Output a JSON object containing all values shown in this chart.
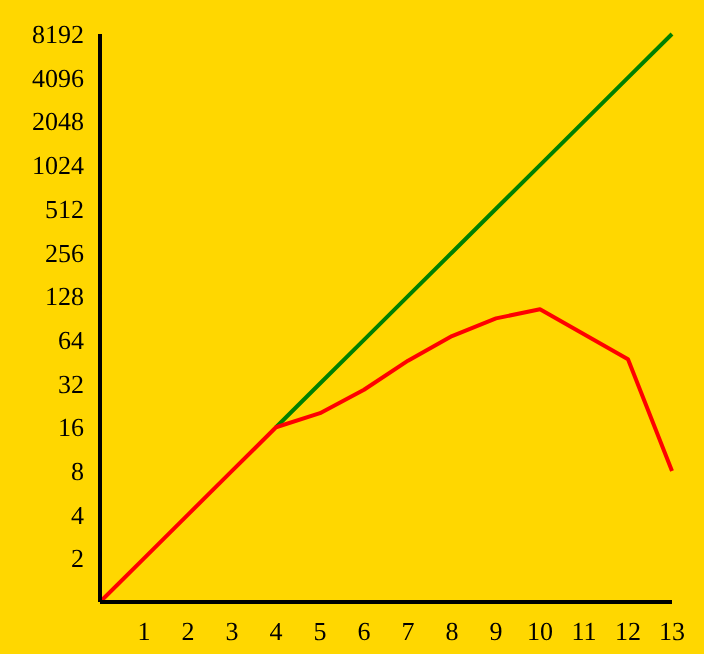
{
  "chart_data": {
    "type": "line",
    "log": "y",
    "x": [
      0,
      1,
      2,
      3,
      4,
      5,
      6,
      7,
      8,
      9,
      10,
      11,
      12,
      13
    ],
    "xlim": [
      0,
      13
    ],
    "xticks": [
      1,
      2,
      3,
      4,
      5,
      6,
      7,
      8,
      9,
      10,
      11,
      12,
      13
    ],
    "ylim": [
      1,
      8192
    ],
    "yticks": [
      2,
      4,
      8,
      16,
      32,
      64,
      128,
      256,
      512,
      1024,
      2048,
      4096,
      8192
    ],
    "grid": false,
    "marker": "none",
    "line_style": "solid",
    "series": [
      {
        "color": "#008000",
        "values": [
          null,
          null,
          null,
          null,
          16,
          32,
          64,
          128,
          256,
          512,
          1024,
          2048,
          4096,
          8192
        ]
      },
      {
        "color": "#ff0000",
        "values": [
          1,
          2,
          4,
          8,
          16,
          20,
          29,
          46,
          68,
          90,
          104,
          70,
          47,
          8
        ]
      }
    ]
  }
}
